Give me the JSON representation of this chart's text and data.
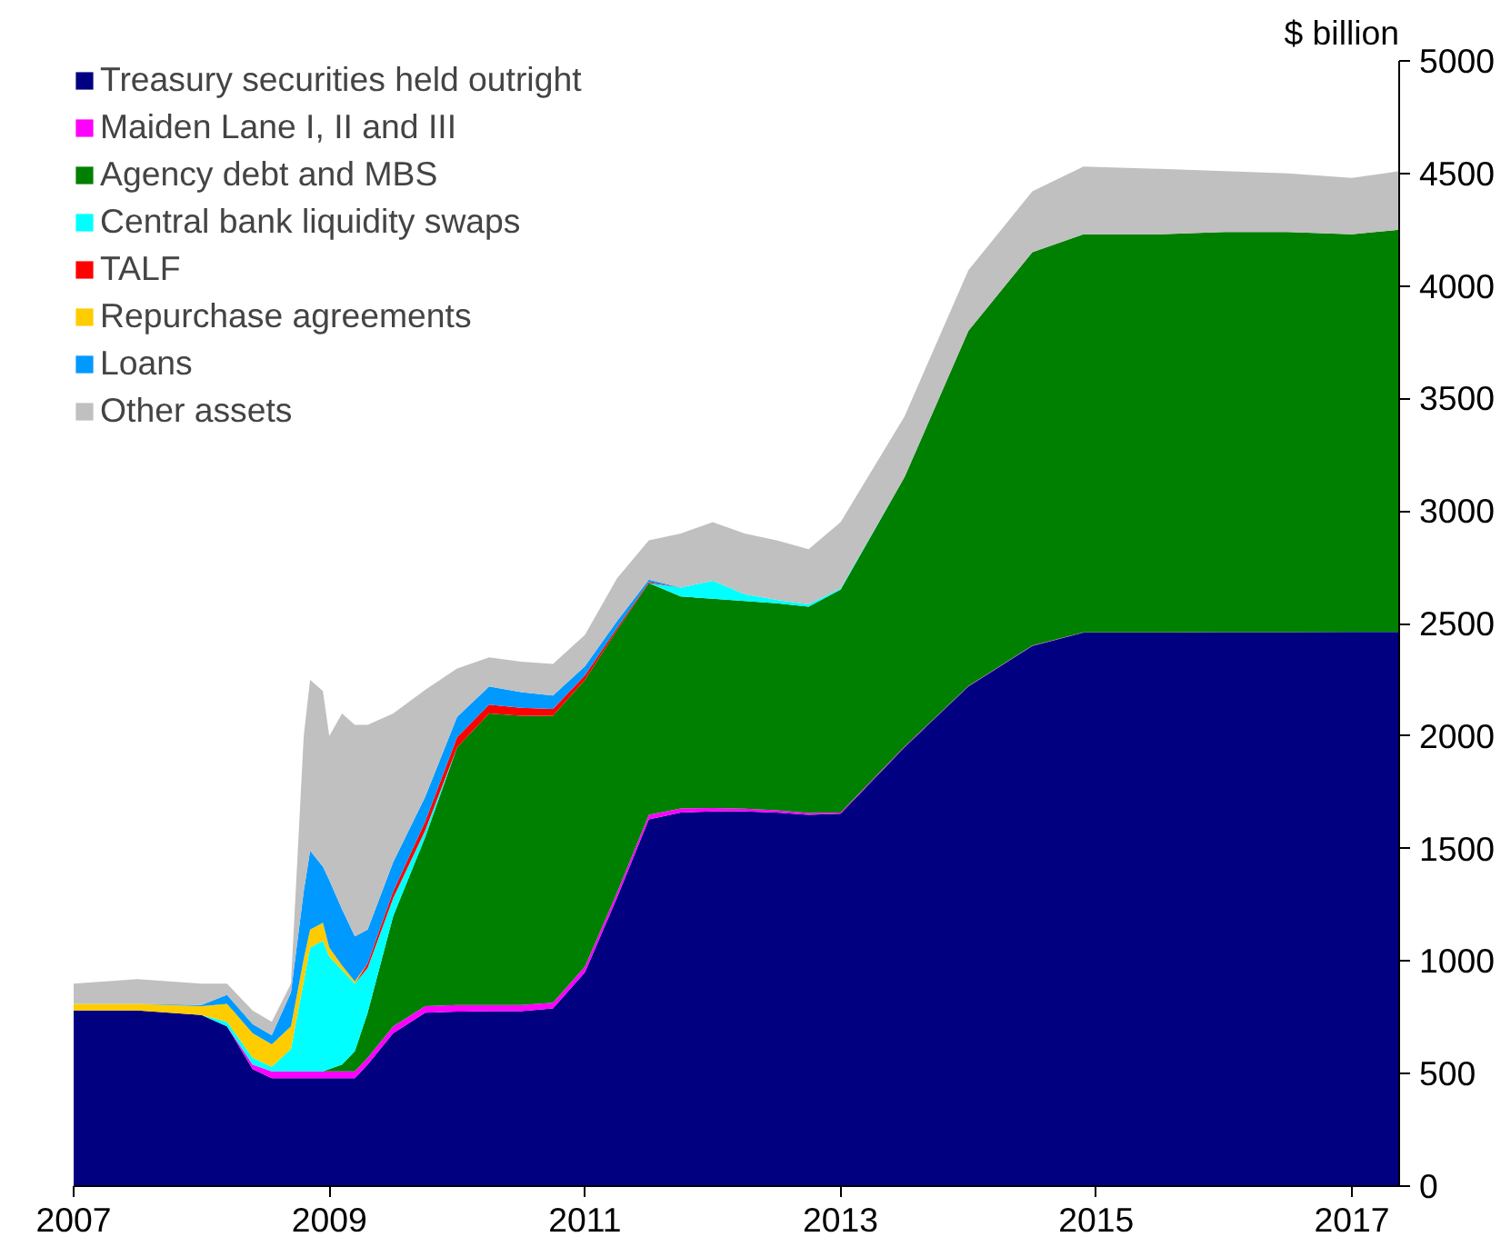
{
  "chart_data": {
    "type": "area",
    "stacked": true,
    "ylabel": "$ billion",
    "x": [
      2007.0,
      2007.5,
      2008.0,
      2008.2,
      2008.4,
      2008.55,
      2008.7,
      2008.8,
      2008.85,
      2008.95,
      2009.0,
      2009.1,
      2009.2,
      2009.3,
      2009.5,
      2009.75,
      2010.0,
      2010.25,
      2010.5,
      2010.75,
      2011.0,
      2011.25,
      2011.5,
      2011.75,
      2012.0,
      2012.25,
      2012.5,
      2012.75,
      2013.0,
      2013.5,
      2014.0,
      2014.5,
      2014.9,
      2015.5,
      2016.0,
      2016.5,
      2017.0,
      2017.37
    ],
    "series": [
      {
        "name": "Treasury securities held outright",
        "color": "#000080",
        "values": [
          780,
          780,
          760,
          710,
          520,
          480,
          480,
          480,
          480,
          480,
          480,
          480,
          480,
          540,
          680,
          770,
          775,
          777,
          777,
          790,
          950,
          1280,
          1630,
          1660,
          1665,
          1665,
          1660,
          1650,
          1655,
          1950,
          2220,
          2400,
          2460,
          2460,
          2462,
          2462,
          2463,
          2463
        ]
      },
      {
        "name": "Maiden Lane I, II and III",
        "color": "#ff00ff",
        "values": [
          null,
          null,
          null,
          0,
          20,
          30,
          30,
          30,
          30,
          30,
          30,
          30,
          30,
          30,
          30,
          30,
          30,
          28,
          28,
          25,
          25,
          22,
          20,
          18,
          15,
          12,
          10,
          8,
          5,
          3,
          2,
          2,
          1,
          1,
          0,
          null,
          null,
          null
        ]
      },
      {
        "name": "Agency debt and MBS",
        "color": "#008000",
        "values": [
          null,
          null,
          null,
          null,
          null,
          null,
          null,
          null,
          null,
          0,
          10,
          30,
          90,
          200,
          490,
          750,
          1145,
          1295,
          1285,
          1275,
          1275,
          1168,
          1030,
          942,
          930,
          923,
          920,
          917,
          990,
          1197,
          1578,
          1748,
          1769,
          1769,
          1778,
          1778,
          1767,
          1787
        ]
      },
      {
        "name": "Central bank liquidity swaps",
        "color": "#00ffff",
        "values": [
          null,
          null,
          0,
          20,
          30,
          20,
          100,
          400,
          550,
          580,
          500,
          420,
          300,
          200,
          80,
          30,
          0,
          null,
          null,
          null,
          null,
          null,
          0,
          40,
          80,
          30,
          15,
          10,
          5,
          0,
          null,
          null,
          null,
          null,
          null,
          null,
          null,
          null
        ]
      },
      {
        "name": "TALF",
        "color": "#ff0000",
        "values": [
          null,
          null,
          null,
          null,
          null,
          null,
          null,
          null,
          null,
          null,
          null,
          null,
          0,
          20,
          30,
          40,
          45,
          40,
          35,
          30,
          20,
          10,
          5,
          0,
          null,
          null,
          null,
          null,
          null,
          null,
          null,
          null,
          null,
          null,
          null,
          null,
          null,
          null
        ]
      },
      {
        "name": "Repurchase agreements",
        "color": "#ffcc00",
        "values": [
          30,
          30,
          40,
          80,
          110,
          100,
          100,
          100,
          80,
          80,
          40,
          20,
          10,
          0,
          null,
          null,
          null,
          null,
          null,
          null,
          null,
          null,
          null,
          null,
          null,
          null,
          null,
          null,
          null,
          null,
          null,
          null,
          null,
          null,
          null,
          null,
          null,
          null
        ]
      },
      {
        "name": "Loans",
        "color": "#0099ff",
        "values": [
          null,
          0,
          5,
          40,
          40,
          40,
          150,
          300,
          350,
          250,
          300,
          250,
          200,
          150,
          130,
          110,
          90,
          80,
          70,
          60,
          40,
          30,
          10,
          0,
          null,
          null,
          null,
          null,
          null,
          null,
          null,
          null,
          null,
          null,
          null,
          null,
          null,
          null
        ]
      },
      {
        "name": "Other assets",
        "color": "#c0c0c0",
        "values": [
          90,
          110,
          95,
          50,
          60,
          60,
          40,
          690,
          760,
          780,
          640,
          870,
          940,
          910,
          660,
          475,
          215,
          130,
          135,
          140,
          140,
          190,
          175,
          240,
          260,
          270,
          265,
          245,
          295,
          270,
          270,
          270,
          300,
          290,
          270,
          260,
          250,
          260
        ]
      }
    ],
    "xlim": [
      2007,
      2017.37
    ],
    "xticks": [
      2007,
      2009,
      2011,
      2013,
      2015,
      2017
    ],
    "ylim": [
      0,
      5000
    ],
    "yticks": [
      0,
      500,
      1000,
      1500,
      2000,
      2500,
      3000,
      3500,
      4000,
      4500,
      5000
    ],
    "grid": false,
    "legend": "top left"
  }
}
